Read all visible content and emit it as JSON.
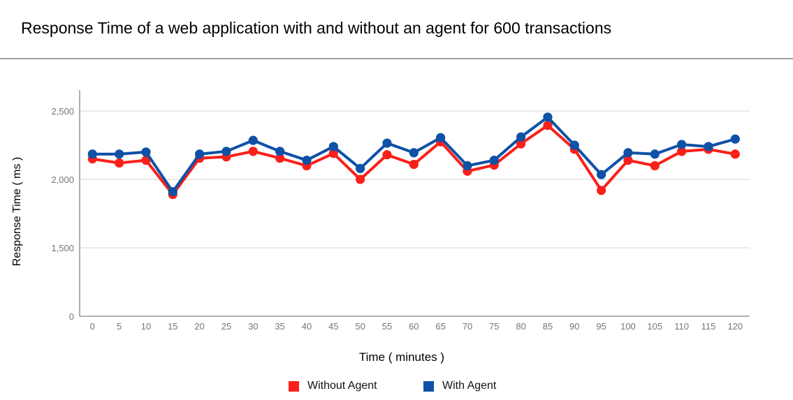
{
  "page": {
    "title": "Response Time of a web application with and without an agent for 600 transactions"
  },
  "chart_data": {
    "type": "line",
    "title": "Response Time of a web application with and without an agent for 600 transactions",
    "xlabel": "Time ( minutes )",
    "ylabel": "Response Time ( ms )",
    "x": [
      0,
      5,
      10,
      15,
      20,
      25,
      30,
      35,
      40,
      45,
      50,
      55,
      60,
      65,
      70,
      75,
      80,
      85,
      90,
      95,
      100,
      105,
      110,
      115,
      120
    ],
    "y_ticks": [
      0,
      1500,
      2000,
      2500
    ],
    "y_tick_labels": [
      "0",
      "1,500",
      "2,000",
      "2,500"
    ],
    "series": [
      {
        "name": "Without Agent",
        "color": "#fa201a",
        "values": [
          2150,
          2120,
          2140,
          1890,
          2155,
          2165,
          2205,
          2155,
          2100,
          2190,
          2000,
          2180,
          2110,
          2275,
          2060,
          2105,
          2260,
          2395,
          2220,
          1920,
          2140,
          2100,
          2205,
          2220,
          2185
        ]
      },
      {
        "name": "With Agent",
        "color": "#0e51a6",
        "values": [
          2185,
          2185,
          2200,
          1910,
          2185,
          2205,
          2285,
          2205,
          2140,
          2240,
          2080,
          2265,
          2195,
          2305,
          2100,
          2140,
          2310,
          2455,
          2250,
          2035,
          2195,
          2185,
          2255,
          2240,
          2295
        ]
      }
    ],
    "legend": {
      "position": "bottom",
      "entries": [
        "Without Agent",
        "With Agent"
      ]
    },
    "grid": true,
    "marker": "circle"
  },
  "colors": {
    "grid_line": "#e4e4e4",
    "axis_line": "#9a9a9a",
    "tick_label": "#757575",
    "divider": "#a3a3a3"
  }
}
